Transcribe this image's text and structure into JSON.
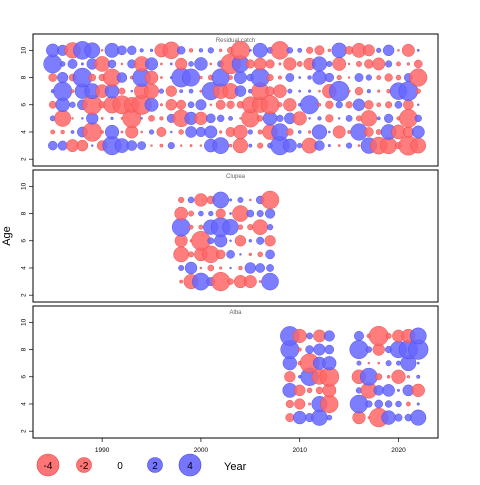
{
  "chart_data": {
    "type": "scatter",
    "subtype": "bubble",
    "ylabel": "Age",
    "xlim": [
      1983,
      2024
    ],
    "ylim": [
      1.5,
      11.2
    ],
    "x_ticks": [
      1990,
      2000,
      2010,
      2020
    ],
    "y_ticks": [
      2,
      4,
      6,
      8,
      10
    ],
    "grid": false,
    "positive_color": "#6666ff",
    "negative_color": "#ff6666",
    "panels": [
      {
        "title": "Residual catch",
        "x_start": 1985,
        "x_end": 2022,
        "ages": [
          3,
          4,
          5,
          6,
          7,
          8,
          9,
          10
        ]
      },
      {
        "title": "Clupea",
        "x_start": 1998,
        "x_end": 2007,
        "ages": [
          3,
          4,
          5,
          6,
          7,
          8,
          9
        ]
      },
      {
        "title": "Alba",
        "x_start": 2009,
        "x_end": 2013,
        "x_start2": 2016,
        "x_end2": 2022,
        "ages": [
          3,
          4,
          5,
          6,
          7,
          8,
          9
        ]
      }
    ],
    "legend": {
      "position": "bottom",
      "values": [
        -4,
        -2,
        0,
        2,
        4
      ],
      "labels": [
        "-4",
        "-2",
        "0",
        "2",
        "4"
      ],
      "title": "Year"
    }
  }
}
